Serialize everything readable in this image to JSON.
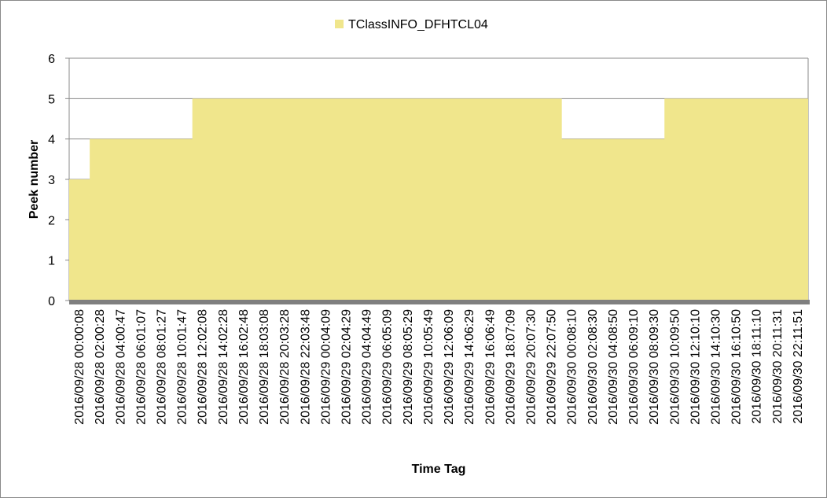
{
  "chart_data": {
    "type": "area",
    "legend": {
      "label": "TClassINFO_DFHTCL04",
      "position": "top"
    },
    "xlabel": "Time Tag",
    "ylabel": "Peek number",
    "ylim": [
      0,
      6
    ],
    "yticks": [
      "0",
      "1",
      "2",
      "3",
      "4",
      "5",
      "6"
    ],
    "grid": true,
    "colors": {
      "fill": "#F0E68C",
      "frame": "#898989",
      "grid": "#898989",
      "baseline": "#7F7F7F"
    },
    "x": [
      "2016/09/28 00:00:08",
      "2016/09/28 02:00:28",
      "2016/09/28 04:00:47",
      "2016/09/28 06:01:07",
      "2016/09/28 08:01:27",
      "2016/09/28 10:01:47",
      "2016/09/28 12:02:08",
      "2016/09/28 14:02:28",
      "2016/09/28 16:02:48",
      "2016/09/28 18:03:08",
      "2016/09/28 20:03:28",
      "2016/09/28 22:03:48",
      "2016/09/29 00:04:09",
      "2016/09/29 02:04:29",
      "2016/09/29 04:04:49",
      "2016/09/29 06:05:09",
      "2016/09/29 08:05:29",
      "2016/09/29 10:05:49",
      "2016/09/29 12:06:09",
      "2016/09/29 14:06:29",
      "2016/09/29 16:06:49",
      "2016/09/29 18:07:09",
      "2016/09/29 20:07:30",
      "2016/09/29 22:07:50",
      "2016/09/30 00:08:10",
      "2016/09/30 02:08:30",
      "2016/09/30 04:08:50",
      "2016/09/30 06:09:10",
      "2016/09/30 08:09:30",
      "2016/09/30 10:09:50",
      "2016/09/30 12:10:10",
      "2016/09/30 14:10:30",
      "2016/09/30 16:10:50",
      "2016/09/30 18:11:10",
      "2016/09/30 20:11:31",
      "2016/09/30 22:11:51"
    ],
    "series": [
      {
        "name": "TClassINFO_DFHTCL04",
        "values": [
          3,
          4,
          4,
          4,
          4,
          4,
          5,
          5,
          5,
          5,
          5,
          5,
          5,
          5,
          5,
          5,
          5,
          5,
          5,
          5,
          5,
          5,
          5,
          5,
          4,
          4,
          4,
          4,
          4,
          5,
          5,
          5,
          5,
          5,
          5,
          5
        ]
      }
    ]
  }
}
